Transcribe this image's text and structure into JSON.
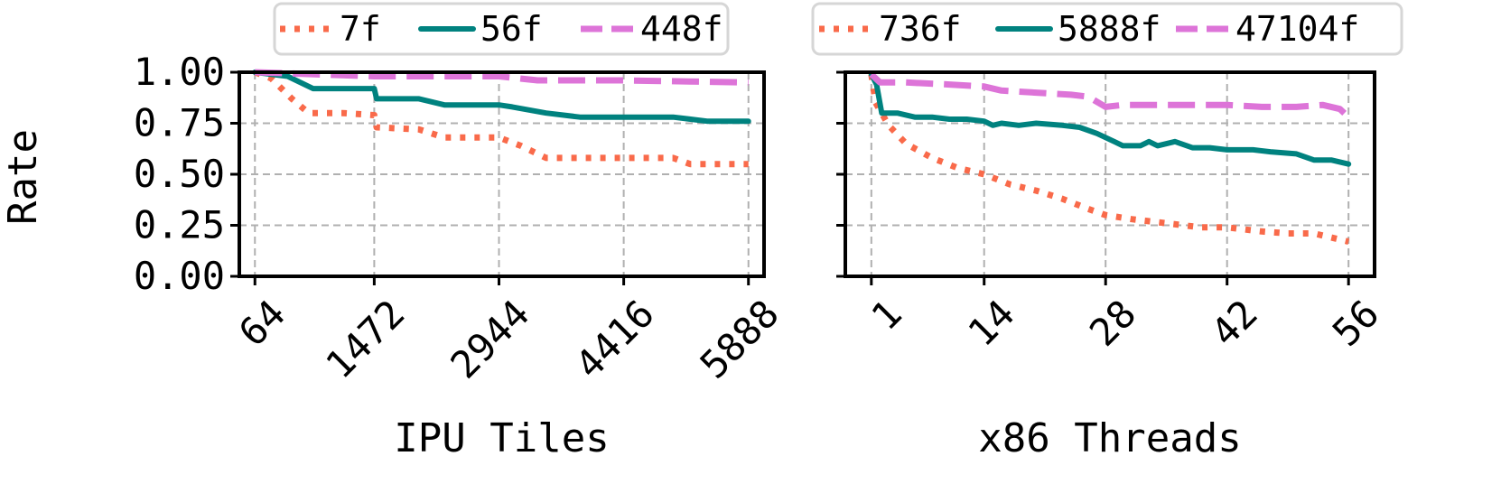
{
  "shared_ylabel": "Rate",
  "chart_data": [
    {
      "type": "line",
      "title": "",
      "xlabel": "IPU Tiles",
      "ylabel": "Rate",
      "xlim": [
        -120,
        6072
      ],
      "ylim": [
        0,
        1
      ],
      "x_ticks": [
        64,
        1472,
        2944,
        4416,
        5888
      ],
      "x_tick_labels": [
        "64",
        "1472",
        "2944",
        "4416",
        "5888"
      ],
      "y_ticks": [
        0,
        0.25,
        0.5,
        0.75,
        1.0
      ],
      "y_tick_labels": [
        "0.00",
        "0.25",
        "0.50",
        "0.75",
        "1.00"
      ],
      "grid": true,
      "legend_position": "top",
      "series": [
        {
          "name": "7f",
          "style": "dotted",
          "color": "#f96a4a",
          "points": [
            [
              64,
              1.0
            ],
            [
              256,
              0.97
            ],
            [
              500,
              0.87
            ],
            [
              700,
              0.8
            ],
            [
              1100,
              0.8
            ],
            [
              1472,
              0.79
            ],
            [
              1500,
              0.73
            ],
            [
              2000,
              0.72
            ],
            [
              2300,
              0.68
            ],
            [
              2944,
              0.68
            ],
            [
              3200,
              0.64
            ],
            [
              3500,
              0.58
            ],
            [
              4000,
              0.58
            ],
            [
              4416,
              0.58
            ],
            [
              5000,
              0.58
            ],
            [
              5200,
              0.55
            ],
            [
              5888,
              0.55
            ]
          ]
        },
        {
          "name": "56f",
          "style": "solid",
          "color": "#00827f",
          "points": [
            [
              64,
              1.0
            ],
            [
              450,
              0.98
            ],
            [
              750,
              0.92
            ],
            [
              1200,
              0.92
            ],
            [
              1472,
              0.92
            ],
            [
              1500,
              0.87
            ],
            [
              2000,
              0.87
            ],
            [
              2300,
              0.84
            ],
            [
              2944,
              0.84
            ],
            [
              3100,
              0.83
            ],
            [
              3500,
              0.8
            ],
            [
              3900,
              0.78
            ],
            [
              4416,
              0.78
            ],
            [
              5000,
              0.78
            ],
            [
              5400,
              0.76
            ],
            [
              5888,
              0.76
            ]
          ]
        },
        {
          "name": "448f",
          "style": "dashed",
          "color": "#dd74d8",
          "points": [
            [
              64,
              1.0
            ],
            [
              1472,
              0.98
            ],
            [
              2944,
              0.98
            ],
            [
              3400,
              0.96
            ],
            [
              4416,
              0.96
            ],
            [
              5888,
              0.95
            ]
          ]
        }
      ]
    },
    {
      "type": "line",
      "title": "",
      "xlabel": "x86 Threads",
      "ylabel": "",
      "xlim": [
        -2,
        59
      ],
      "ylim": [
        0,
        1
      ],
      "x_ticks": [
        1,
        14,
        28,
        42,
        56
      ],
      "x_tick_labels": [
        "1",
        "14",
        "28",
        "42",
        "56"
      ],
      "y_ticks": [
        0,
        0.25,
        0.5,
        0.75,
        1.0
      ],
      "y_tick_labels": [
        "",
        "",
        "",
        "",
        ""
      ],
      "grid": true,
      "legend_position": "top",
      "series": [
        {
          "name": "736f",
          "style": "dotted",
          "color": "#f96a4a",
          "points": [
            [
              1,
              0.99
            ],
            [
              1.5,
              0.85
            ],
            [
              3,
              0.74
            ],
            [
              5,
              0.65
            ],
            [
              8,
              0.58
            ],
            [
              11,
              0.53
            ],
            [
              14,
              0.5
            ],
            [
              17,
              0.45
            ],
            [
              20,
              0.42
            ],
            [
              23,
              0.38
            ],
            [
              26,
              0.33
            ],
            [
              28,
              0.3
            ],
            [
              31,
              0.28
            ],
            [
              35,
              0.26
            ],
            [
              39,
              0.24
            ],
            [
              42,
              0.24
            ],
            [
              46,
              0.22
            ],
            [
              49,
              0.21
            ],
            [
              52,
              0.21
            ],
            [
              55,
              0.18
            ],
            [
              56,
              0.17
            ]
          ]
        },
        {
          "name": "5888f",
          "style": "solid",
          "color": "#00827f",
          "points": [
            [
              1,
              0.99
            ],
            [
              1.6,
              0.94
            ],
            [
              2.2,
              0.8
            ],
            [
              4,
              0.8
            ],
            [
              6,
              0.78
            ],
            [
              8,
              0.78
            ],
            [
              10,
              0.77
            ],
            [
              12,
              0.77
            ],
            [
              14,
              0.76
            ],
            [
              15,
              0.74
            ],
            [
              16,
              0.75
            ],
            [
              18,
              0.74
            ],
            [
              20,
              0.75
            ],
            [
              23,
              0.74
            ],
            [
              25,
              0.73
            ],
            [
              27,
              0.7
            ],
            [
              29,
              0.66
            ],
            [
              30,
              0.64
            ],
            [
              32,
              0.64
            ],
            [
              33,
              0.66
            ],
            [
              34,
              0.64
            ],
            [
              36,
              0.66
            ],
            [
              38,
              0.63
            ],
            [
              40,
              0.63
            ],
            [
              42,
              0.62
            ],
            [
              45,
              0.62
            ],
            [
              47,
              0.61
            ],
            [
              50,
              0.6
            ],
            [
              52,
              0.57
            ],
            [
              54,
              0.57
            ],
            [
              56,
              0.55
            ]
          ]
        },
        {
          "name": "47104f",
          "style": "dashed",
          "color": "#dd74d8",
          "points": [
            [
              1,
              0.99
            ],
            [
              2,
              0.95
            ],
            [
              5,
              0.95
            ],
            [
              10,
              0.94
            ],
            [
              14,
              0.93
            ],
            [
              16,
              0.91
            ],
            [
              20,
              0.9
            ],
            [
              24,
              0.89
            ],
            [
              26,
              0.88
            ],
            [
              28,
              0.83
            ],
            [
              30,
              0.84
            ],
            [
              33,
              0.84
            ],
            [
              36,
              0.84
            ],
            [
              40,
              0.84
            ],
            [
              42,
              0.84
            ],
            [
              46,
              0.83
            ],
            [
              50,
              0.83
            ],
            [
              53,
              0.84
            ],
            [
              55,
              0.82
            ],
            [
              56,
              0.78
            ]
          ]
        }
      ]
    }
  ]
}
